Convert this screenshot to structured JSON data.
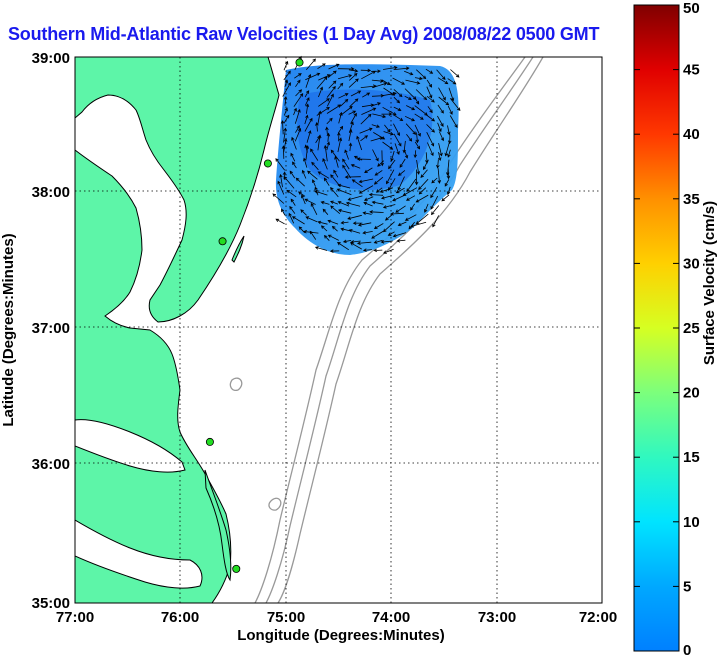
{
  "title": "Southern Mid-Atlantic Raw Velocities (1 Day Avg) 2008/08/22 0500 GMT",
  "map": {
    "xlabel": "Longitude (Degrees:Minutes)",
    "ylabel": "Latitude (Degrees:Minutes)",
    "x_ticks": [
      "77:00",
      "76:00",
      "75:00",
      "74:00",
      "73:00",
      "72:00"
    ],
    "y_ticks": [
      "39:00",
      "38:00",
      "37:00",
      "36:00",
      "35:00"
    ],
    "lon_range": [
      -77,
      -72
    ],
    "lat_range": [
      35,
      39
    ],
    "grid": "dotted",
    "land_color": "#5df5a8",
    "bathymetry_color": "#999999"
  },
  "colorbar": {
    "label": "Surface Velocity (cm/s)",
    "ticks": [
      "50",
      "45",
      "40",
      "35",
      "30",
      "25",
      "20",
      "15",
      "10",
      "5",
      "0"
    ],
    "range": [
      0,
      50
    ],
    "colormap": "jet"
  },
  "stations": [
    {
      "lon": -74.87,
      "lat": 38.96
    },
    {
      "lon": -75.17,
      "lat": 38.22
    },
    {
      "lon": -75.6,
      "lat": 37.65
    },
    {
      "lon": -75.72,
      "lat": 36.18
    },
    {
      "lon": -75.47,
      "lat": 35.25
    }
  ]
}
